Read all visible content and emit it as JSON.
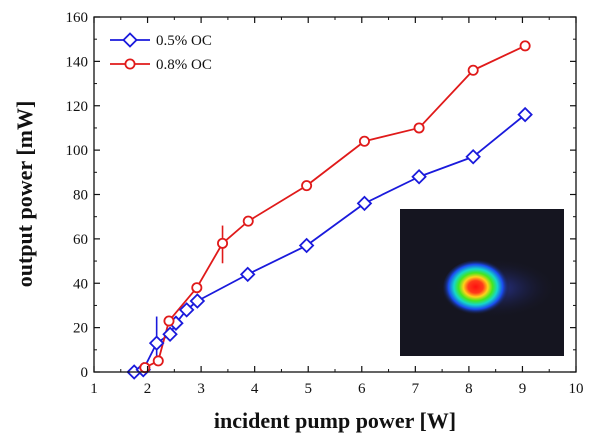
{
  "chart_data": {
    "type": "line",
    "xlabel": "incident pump power [W]",
    "ylabel": "output power [mW]",
    "xlim": [
      1,
      10
    ],
    "ylim": [
      0,
      160
    ],
    "x_ticks": [
      1,
      2,
      3,
      4,
      5,
      6,
      7,
      8,
      9,
      10
    ],
    "y_ticks": [
      0,
      20,
      40,
      60,
      80,
      100,
      120,
      140,
      160
    ],
    "grid": false,
    "legend_position": "top-left",
    "series": [
      {
        "name": "0.5% OC",
        "color": "#1a1adc",
        "marker": "diamond",
        "x": [
          1.75,
          1.92,
          2.17,
          2.42,
          2.53,
          2.73,
          2.93,
          3.87,
          4.97,
          6.05,
          7.07,
          8.08,
          9.05
        ],
        "y": [
          0,
          1,
          13,
          17,
          22,
          28,
          32,
          44,
          57,
          76,
          88,
          97,
          116
        ]
      },
      {
        "name": "0.8% OC",
        "color": "#e01a1a",
        "marker": "circle",
        "x": [
          1.95,
          2.2,
          2.4,
          2.92,
          3.4,
          3.88,
          4.97,
          6.05,
          7.07,
          8.08,
          9.05
        ],
        "y": [
          2,
          5,
          23,
          38,
          58,
          68,
          84,
          104,
          110,
          136,
          147
        ]
      }
    ],
    "error_bars": [
      {
        "series": "0.5% OC",
        "x": 2.17,
        "y_low": 5,
        "y_high": 25,
        "color": "#1a1adc"
      },
      {
        "series": "0.8% OC",
        "x": 3.4,
        "y_low": 49,
        "y_high": 66,
        "color": "#e01a1a"
      }
    ],
    "inset": {
      "description": "beam profile",
      "background": "#151520"
    }
  }
}
